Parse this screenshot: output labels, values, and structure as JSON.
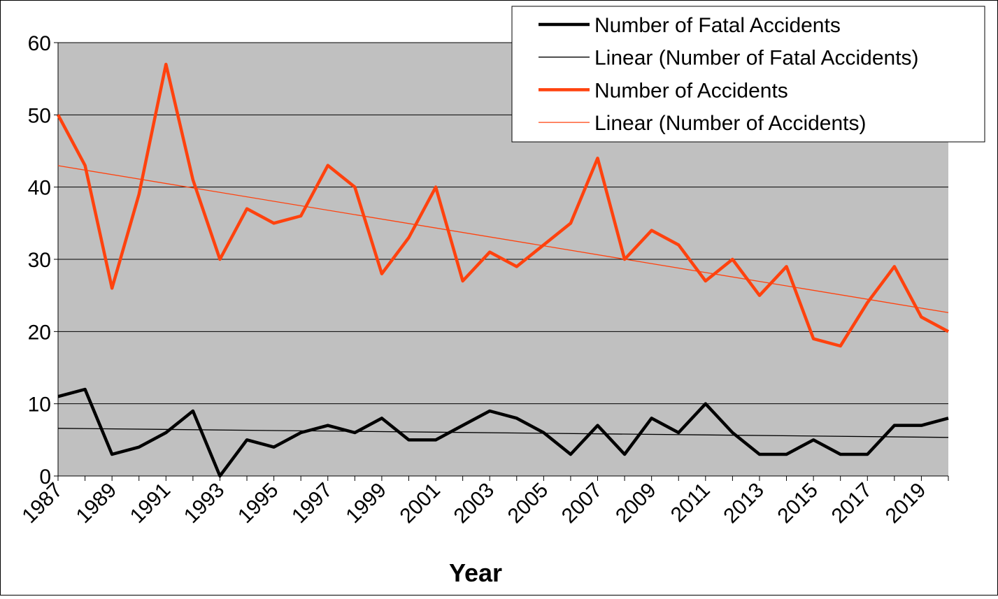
{
  "chart_data": {
    "type": "line",
    "x_label": "Year",
    "categories": [
      "1987",
      null,
      "1989",
      null,
      "1991",
      null,
      "1993",
      null,
      "1995",
      null,
      "1997",
      null,
      "1999",
      null,
      "2001",
      null,
      "2003",
      null,
      "2005",
      null,
      "2007",
      null,
      "2009",
      null,
      "2011",
      null,
      "2013",
      null,
      "2015",
      null,
      "2017",
      null,
      "2019",
      null
    ],
    "series": [
      {
        "name": "Number of Fatal Accidents",
        "color": "#000000",
        "values": [
          11,
          12,
          3,
          4,
          6,
          9,
          0,
          5,
          4,
          6,
          7,
          6,
          8,
          5,
          5,
          7,
          9,
          8,
          6,
          3,
          7,
          3,
          8,
          6,
          10,
          6,
          3,
          3,
          5,
          3,
          3,
          7,
          7,
          8
        ],
        "trendline": {
          "name": "Linear (Number of Fatal Accidents)",
          "color": "#000000"
        }
      },
      {
        "name": "Number of Accidents",
        "color": "#ff420e",
        "values": [
          50,
          43,
          26,
          39,
          57,
          41,
          30,
          37,
          35,
          36,
          43,
          40,
          28,
          33,
          40,
          27,
          31,
          29,
          32,
          35,
          44,
          30,
          34,
          32,
          27,
          30,
          25,
          29,
          19,
          18,
          24,
          29,
          22,
          20
        ],
        "trendline": {
          "name": "Linear (Number of Accidents)",
          "color": "#ff420e"
        }
      }
    ],
    "ylim": [
      0,
      60
    ],
    "yticks": [
      0,
      10,
      20,
      30,
      40,
      50,
      60
    ],
    "grid": true,
    "legend": "top-right"
  }
}
